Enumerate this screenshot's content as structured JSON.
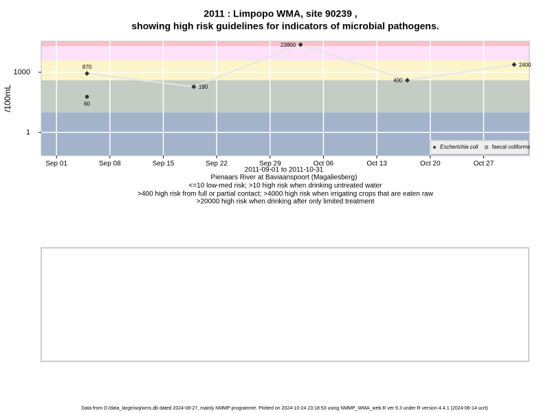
{
  "chart_data": {
    "type": "line",
    "title": "2011 : Limpopo WMA, site 90239 ,",
    "subtitle": "showing high risk guidelines for indicators of microbial pathogens.",
    "ylabel": "/100mL",
    "xlabel": "2011-09-01 to 2011-10-31",
    "site": "Pienaars River at Baviaanspoort (Magaliesberg)",
    "annotations": [
      "<=10 low-med risk; >10 high risk when drinking untreated water",
      ">400 high risk from full or partial contact; >4000 high risk when irrigating crops that are eaten raw",
      ">20000 high risk when drinking after only limited treatment"
    ],
    "footer": "Data from D:/data_large/wq/wms.db dated 2024-08-27, mainly NMMP programme. Plotted on 2024-10-24 23:18:53 using NMMP_WMA_web.R ver 9.3 under R version 4.4.1 (2024-06-14 ucrt)",
    "log_y": true,
    "ylim": [
      0.07,
      35000
    ],
    "yticks": [
      1,
      1000
    ],
    "xlim": [
      "2011-08-30",
      "2011-11-02"
    ],
    "xticks": [
      {
        "value": "2011-09-01",
        "label": "Sep 01"
      },
      {
        "value": "2011-09-08",
        "label": "Sep 08"
      },
      {
        "value": "2011-09-15",
        "label": "Sep 15"
      },
      {
        "value": "2011-09-22",
        "label": "Sep 22"
      },
      {
        "value": "2011-09-29",
        "label": "Sep 29"
      },
      {
        "value": "2011-10-06",
        "label": "Oct 06"
      },
      {
        "value": "2011-10-13",
        "label": "Oct 13"
      },
      {
        "value": "2011-10-20",
        "label": "Oct 20"
      },
      {
        "value": "2011-10-27",
        "label": "Oct 27"
      }
    ],
    "grid": true,
    "thresholds": [
      10,
      400,
      4000,
      20000
    ],
    "band_colors": [
      "#a3b3cc",
      "#c4cdc3",
      "#fcf5c9",
      "#fde0fa",
      "#fcc0cc"
    ],
    "legend": "bottom-right",
    "series": [
      {
        "name": "Escherichia coli",
        "color": "#333333",
        "line_color": "#e6e6e6",
        "marker": "diamond",
        "x": [
          "2011-09-05",
          "2011-09-19",
          "2011-10-03",
          "2011-10-17",
          "2011-10-31"
        ],
        "values": [
          870,
          190,
          23800,
          400,
          2400
        ]
      },
      {
        "name": "faecal coliforms",
        "color": "#333333",
        "marker": "circle",
        "x": [
          "2011-09-05"
        ],
        "values": [
          60
        ]
      }
    ]
  }
}
